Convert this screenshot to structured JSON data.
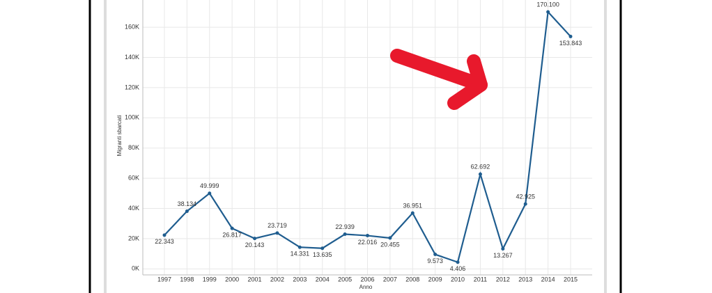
{
  "chart_data": {
    "type": "line",
    "x_label": "Anno",
    "y_label": "Migranti sbarcati",
    "categories": [
      "1997",
      "1998",
      "1999",
      "2000",
      "2001",
      "2002",
      "2003",
      "2004",
      "2005",
      "2006",
      "2007",
      "2008",
      "2009",
      "2010",
      "2011",
      "2012",
      "2013",
      "2014",
      "2015"
    ],
    "values": [
      22343,
      38134,
      49999,
      26817,
      20143,
      23719,
      14331,
      13635,
      22939,
      22016,
      20455,
      36951,
      9573,
      4406,
      62692,
      13267,
      42925,
      170100,
      153843
    ],
    "value_labels": [
      "22.343",
      "38.134",
      "49.999",
      "26.817",
      "20.143",
      "23.719",
      "14.331",
      "13.635",
      "22.939",
      "22.016",
      "20.455",
      "36.951",
      "9.573",
      "4.406",
      "62.692",
      "13.267",
      "42.925",
      "170.100",
      "153.843"
    ],
    "color": "#1f5d8f",
    "ylim": [
      -4000,
      178000
    ],
    "yticks": [
      {
        "value": 0,
        "label": "0K"
      },
      {
        "value": 20000,
        "label": "20K"
      },
      {
        "value": 40000,
        "label": "40K"
      },
      {
        "value": 60000,
        "label": "60K"
      },
      {
        "value": 80000,
        "label": "80K"
      },
      {
        "value": 100000,
        "label": "100K"
      },
      {
        "value": 120000,
        "label": "120K"
      },
      {
        "value": 140000,
        "label": "140K"
      },
      {
        "value": 160000,
        "label": "160K"
      }
    ],
    "grid": true
  }
}
